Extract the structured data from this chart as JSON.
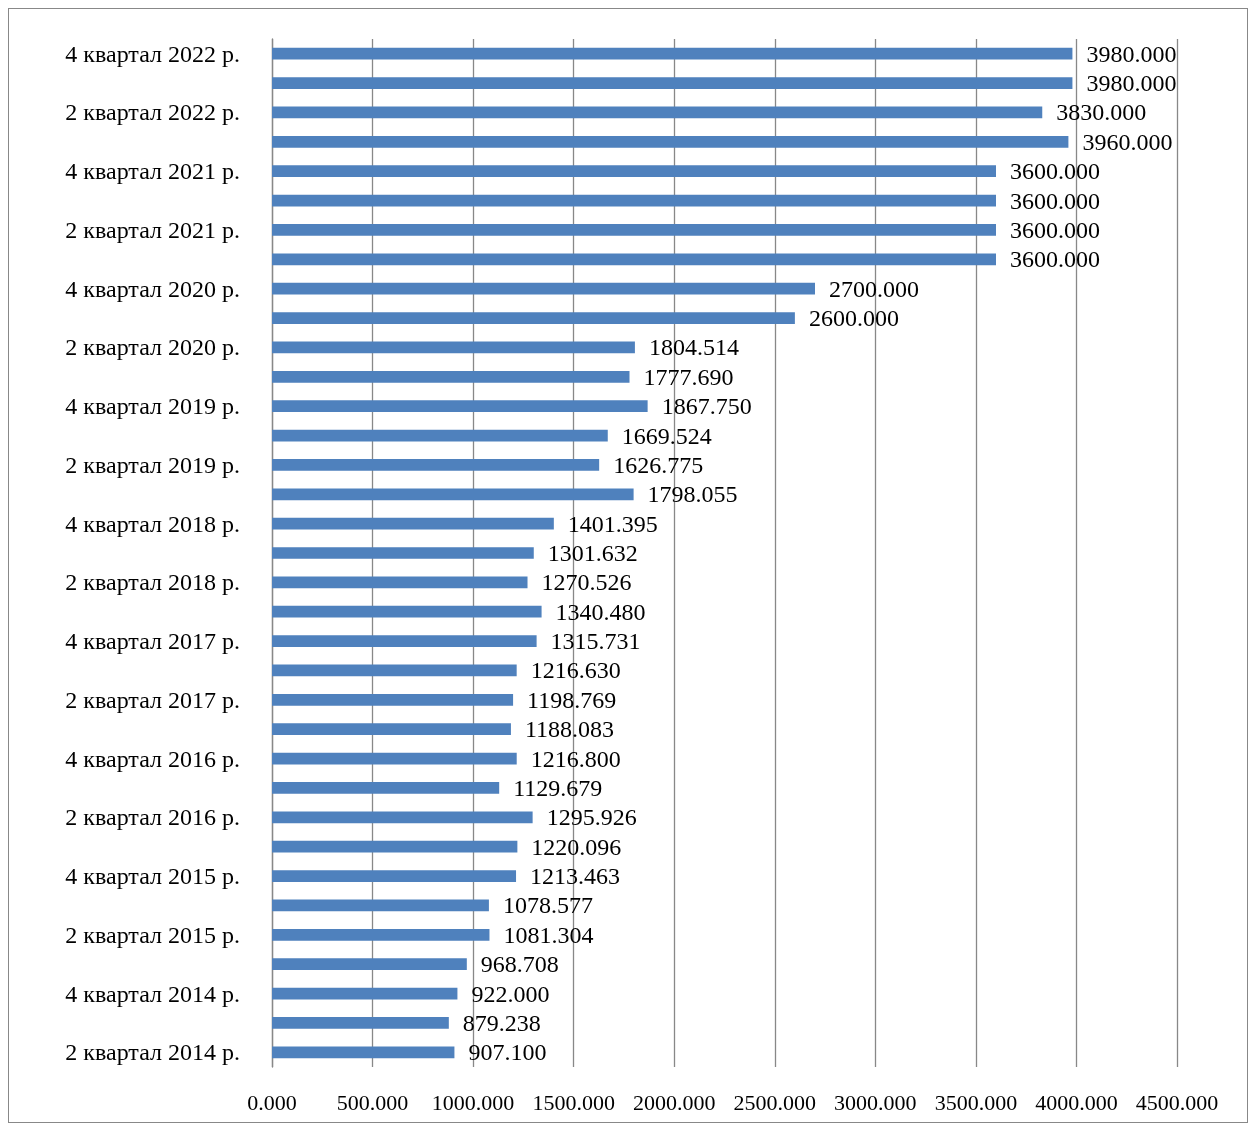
{
  "chart_data": {
    "type": "bar",
    "orientation": "horizontal",
    "categories": [
      "4 квартал 2022 р.",
      null,
      "2 квартал 2022 р.",
      null,
      "4 квартал 2021 р.",
      null,
      "2 квартал 2021 р.",
      null,
      "4 квартал 2020 р.",
      null,
      "2 квартал 2020 р.",
      null,
      "4 квартал 2019 р.",
      null,
      "2 квартал 2019 р.",
      null,
      "4 квартал 2018 р.",
      null,
      "2 квартал 2018 р.",
      null,
      "4 квартал 2017 р.",
      null,
      "2 квартал 2017 р.",
      null,
      "4 квартал 2016 р.",
      null,
      "2 квартал 2016 р.",
      null,
      "4 квартал 2015 р.",
      null,
      "2 квартал 2015 р.",
      null,
      "4 квартал 2014 р.",
      null,
      "2 квартал 2014 р."
    ],
    "values": [
      3980,
      3980,
      3830,
      3960,
      3600,
      3600,
      3600,
      3600,
      2700,
      2600,
      1804.514,
      1777.69,
      1867.75,
      1669.524,
      1626.775,
      1798.055,
      1401.395,
      1301.632,
      1270.526,
      1340.48,
      1315.731,
      1216.63,
      1198.769,
      1188.083,
      1216.8,
      1129.679,
      1295.926,
      1220.096,
      1213.463,
      1078.577,
      1081.304,
      968.708,
      922,
      879.238,
      907.1
    ],
    "value_labels": [
      "3980.000",
      "3980.000",
      "3830.000",
      "3960.000",
      "3600.000",
      "3600.000",
      "3600.000",
      "3600.000",
      "2700.000",
      "2600.000",
      "1804.514",
      "1777.690",
      "1867.750",
      "1669.524",
      "1626.775",
      "1798.055",
      "1401.395",
      "1301.632",
      "1270.526",
      "1340.480",
      "1315.731",
      "1216.630",
      "1198.769",
      "1188.083",
      "1216.800",
      "1129.679",
      "1295.926",
      "1220.096",
      "1213.463",
      "1078.577",
      "1081.304",
      "968.708",
      "922.000",
      "879.238",
      "907.100"
    ],
    "color": "#4f81bd",
    "xlim": [
      0,
      4500
    ],
    "xticks": [
      {
        "value": 0,
        "label": "0.000"
      },
      {
        "value": 500,
        "label": "500.000"
      },
      {
        "value": 1000,
        "label": "1000.000"
      },
      {
        "value": 1500,
        "label": "1500.000"
      },
      {
        "value": 2000,
        "label": "2000.000"
      },
      {
        "value": 2500,
        "label": "2500.000"
      },
      {
        "value": 3000,
        "label": "3000.000"
      },
      {
        "value": 3500,
        "label": "3500.000"
      },
      {
        "value": 4000,
        "label": "4000.000"
      },
      {
        "value": 4500,
        "label": "4500.000"
      }
    ],
    "grid": "x"
  }
}
